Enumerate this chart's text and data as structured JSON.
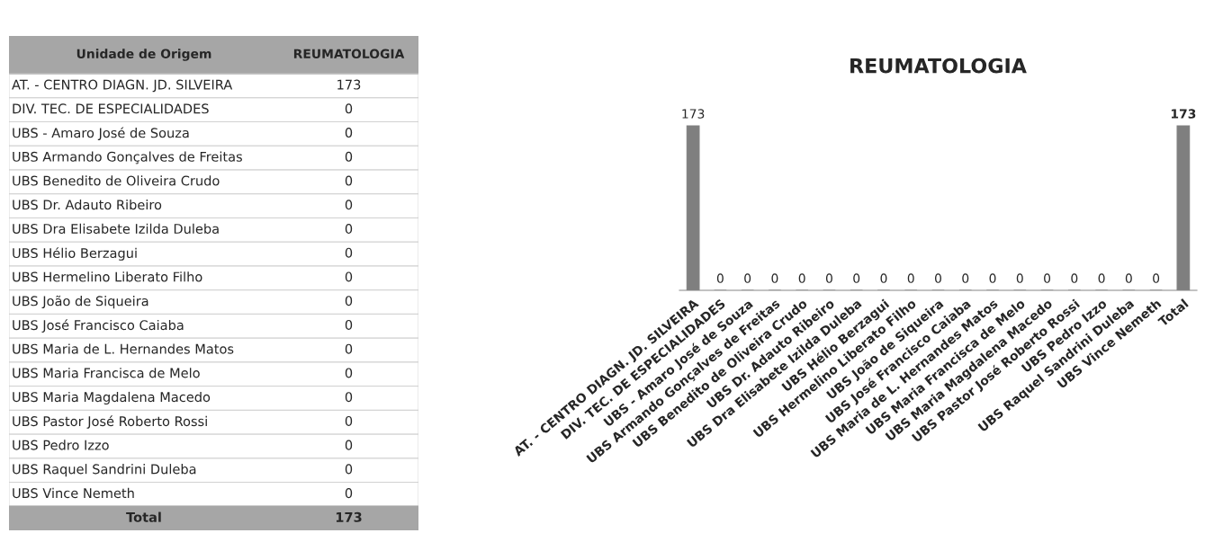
{
  "chart_data": [
    {
      "type": "other",
      "categories": [
        "AT. - CENTRO DIAGN. JD. SILVEIRA",
        "DIV. TEC. DE ESPECIALIDADES",
        "UBS - Amaro José de Souza",
        "UBS Armando Gonçalves de Freitas",
        "UBS Benedito de Oliveira Crudo",
        "UBS Dr. Adauto Ribeiro",
        "UBS Dra Elisabete Izilda Duleba",
        "UBS Hélio Berzagui",
        "UBS Hermelino Liberato Filho",
        "UBS João de Siqueira",
        "UBS José Francisco Caiaba",
        "UBS Maria de L. Hernandes Matos",
        "UBS Maria Francisca de Melo",
        "UBS Maria Magdalena Macedo",
        "UBS Pastor José Roberto Rossi",
        "UBS Pedro Izzo",
        "UBS Raquel Sandrini Duleba",
        "UBS Vince Nemeth",
        "Total"
      ],
      "values": [
        173,
        0,
        0,
        0,
        0,
        0,
        0,
        0,
        0,
        0,
        0,
        0,
        0,
        0,
        0,
        0,
        0,
        0,
        173
      ],
      "data_labels": true,
      "annotations": [
        "Unidade de Origem",
        "REUMATOLOGIA"
      ]
    },
    {
      "type": "bar",
      "title": "REUMATOLOGIA",
      "categories": [
        "AT. - CENTRO DIAGN. JD. SILVEIRA",
        "DIV. TEC. DE ESPECIALIDADES",
        "UBS - Amaro José de Souza",
        "UBS Armando Gonçalves de Freitas",
        "UBS Benedito de Oliveira Crudo",
        "UBS Dr. Adauto Ribeiro",
        "UBS Dra Elisabete Izilda Duleba",
        "UBS Hélio Berzagui",
        "UBS Hermelino Liberato Filho",
        "UBS João de Siqueira",
        "UBS José Francisco Caiaba",
        "UBS Maria de L. Hernandes Matos",
        "UBS Maria Francisca de Melo",
        "UBS Maria Magdalena Macedo",
        "UBS Pastor José Roberto Rossi",
        "UBS Pedro Izzo",
        "UBS Raquel Sandrini Duleba",
        "UBS Vince Nemeth",
        "Total"
      ],
      "values": [
        173,
        0,
        0,
        0,
        0,
        0,
        0,
        0,
        0,
        0,
        0,
        0,
        0,
        0,
        0,
        0,
        0,
        0,
        173
      ],
      "color": "#7f7f7f",
      "data_labels": true
    }
  ]
}
